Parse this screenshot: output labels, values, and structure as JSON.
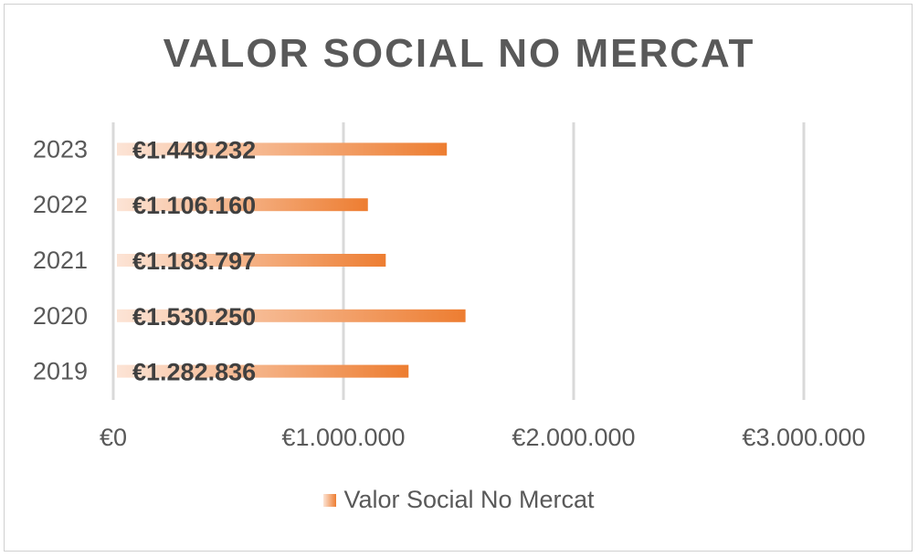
{
  "chart_data": {
    "type": "bar",
    "orientation": "horizontal",
    "title": "VALOR SOCIAL NO MERCAT",
    "categories": [
      "2023",
      "2022",
      "2021",
      "2020",
      "2019"
    ],
    "series": [
      {
        "name": "Valor Social No Mercat",
        "values": [
          1449232,
          1106160,
          1183797,
          1530250,
          1282836
        ],
        "labels": [
          "€1.449.232",
          "€1.106.160",
          "€1.183.797",
          "€1.530.250",
          "€1.282.836"
        ]
      }
    ],
    "x_ticks": [
      {
        "value": 0,
        "label": "€0"
      },
      {
        "value": 1000000,
        "label": "€1.000.000"
      },
      {
        "value": 2000000,
        "label": "€2.000.000"
      },
      {
        "value": 3000000,
        "label": "€3.000.000"
      }
    ],
    "xlim": [
      0,
      3000000
    ],
    "grid": true,
    "legend_position": "bottom",
    "colors": {
      "bar_start": "#fce4d6",
      "bar_end": "#ed7d31",
      "text": "#595959",
      "data_label": "#404040",
      "grid": "#d9d9d9"
    }
  }
}
